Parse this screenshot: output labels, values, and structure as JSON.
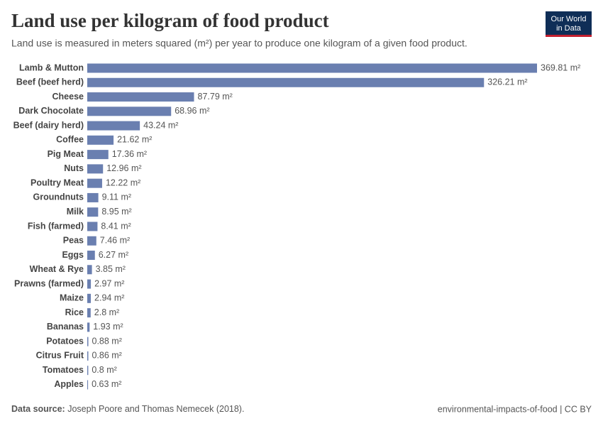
{
  "chart_data": {
    "type": "bar",
    "orientation": "horizontal",
    "title": "Land use per kilogram of food product",
    "subtitle": "Land use is measured in meters squared (m²) per year to produce one kilogram of a given food product.",
    "logo": [
      "Our World",
      "in Data"
    ],
    "source_label": "Data source:",
    "source": "Joseph Poore and Thomas Nemecek (2018).",
    "footer": "environmental-impacts-of-food | CC BY",
    "color": "#6a7fb0",
    "categories": [
      "Lamb & Mutton",
      "Beef (beef herd)",
      "Cheese",
      "Dark Chocolate",
      "Beef (dairy herd)",
      "Coffee",
      "Pig Meat",
      "Nuts",
      "Poultry Meat",
      "Groundnuts",
      "Milk",
      "Fish (farmed)",
      "Peas",
      "Eggs",
      "Wheat & Rye",
      "Prawns (farmed)",
      "Maize",
      "Rice",
      "Bananas",
      "Potatoes",
      "Citrus Fruit",
      "Tomatoes",
      "Apples"
    ],
    "values": [
      369.81,
      326.21,
      87.79,
      68.96,
      43.24,
      21.62,
      17.36,
      12.96,
      12.22,
      9.11,
      8.95,
      8.41,
      7.46,
      6.27,
      3.85,
      2.97,
      2.94,
      2.8,
      1.93,
      0.88,
      0.86,
      0.8,
      0.63
    ],
    "value_labels": [
      "369.81 m²",
      "326.21 m²",
      "87.79 m²",
      "68.96 m²",
      "43.24 m²",
      "21.62 m²",
      "17.36 m²",
      "12.96 m²",
      "12.22 m²",
      "9.11 m²",
      "8.95 m²",
      "8.41 m²",
      "7.46 m²",
      "6.27 m²",
      "3.85 m²",
      "2.97 m²",
      "2.94 m²",
      "2.8 m²",
      "1.93 m²",
      "0.88 m²",
      "0.86 m²",
      "0.8 m²",
      "0.63 m²"
    ]
  }
}
